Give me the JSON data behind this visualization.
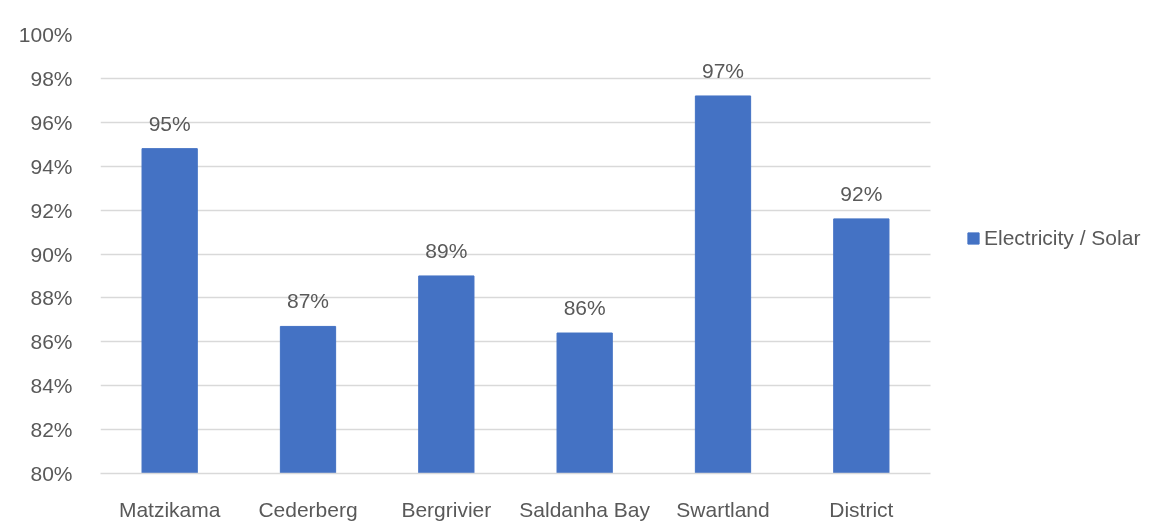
{
  "chart_data": {
    "type": "bar",
    "categories": [
      "Matzikama",
      "Cederberg",
      "Bergrivier",
      "Saldanha Bay",
      "Swartland",
      "District"
    ],
    "series": [
      {
        "name": "Electricity / Solar",
        "color": "#4472c4",
        "values": [
          94.8,
          86.7,
          89.0,
          86.4,
          97.2,
          91.6
        ],
        "value_labels": [
          "95%",
          "87%",
          "89%",
          "86%",
          "97%",
          "92%"
        ]
      }
    ],
    "ylim": [
      80,
      100
    ],
    "yticks": [
      {
        "value": 80,
        "label": "80%"
      },
      {
        "value": 82,
        "label": "82%"
      },
      {
        "value": 84,
        "label": "84%"
      },
      {
        "value": 86,
        "label": "86%"
      },
      {
        "value": 88,
        "label": "88%"
      },
      {
        "value": 90,
        "label": "90%"
      },
      {
        "value": 92,
        "label": "92%"
      },
      {
        "value": 94,
        "label": "94%"
      },
      {
        "value": 96,
        "label": "96%"
      },
      {
        "value": 98,
        "label": "98%"
      },
      {
        "value": 100,
        "label": "100%"
      }
    ],
    "grid": "y",
    "legend": "right"
  }
}
